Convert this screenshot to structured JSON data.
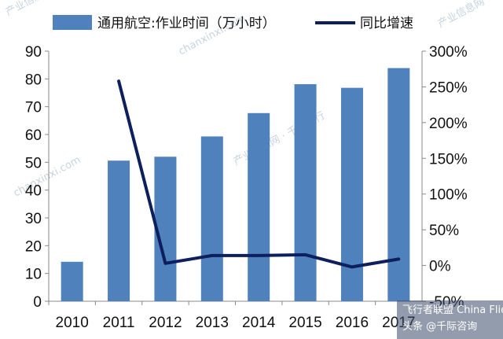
{
  "chart_data": {
    "type": "bar+line",
    "categories": [
      "2010",
      "2011",
      "2012",
      "2013",
      "2014",
      "2015",
      "2016",
      "2017"
    ],
    "series": [
      {
        "name": "通用航空:作业时间（万小时）",
        "type": "bar",
        "axis": "left",
        "values": [
          14.2,
          50.6,
          52.0,
          59.3,
          67.7,
          78.1,
          76.8,
          83.9
        ]
      },
      {
        "name": "同比增速",
        "type": "line",
        "axis": "right",
        "values": [
          null,
          258,
          3,
          14,
          14,
          15,
          -2,
          9
        ]
      }
    ],
    "y_left": {
      "min": 0,
      "max": 90,
      "ticks": [
        "0",
        "10",
        "20",
        "30",
        "40",
        "50",
        "60",
        "70",
        "80",
        "90"
      ]
    },
    "y_right": {
      "min": -50,
      "max": 300,
      "ticks": [
        "-50%",
        "0%",
        "50%",
        "100%",
        "150%",
        "200%",
        "250%",
        "300%"
      ]
    },
    "legend_position": "top",
    "grid": false,
    "colors": {
      "bar": "#4f81bd",
      "line": "#0d1f5c"
    }
  },
  "watermark": {
    "cn": "产业信息网 · 千际投行",
    "en": "chanxinxi.com",
    "credit": "头条 @千际咨询",
    "logo": "飞行者联盟 China Flier"
  }
}
